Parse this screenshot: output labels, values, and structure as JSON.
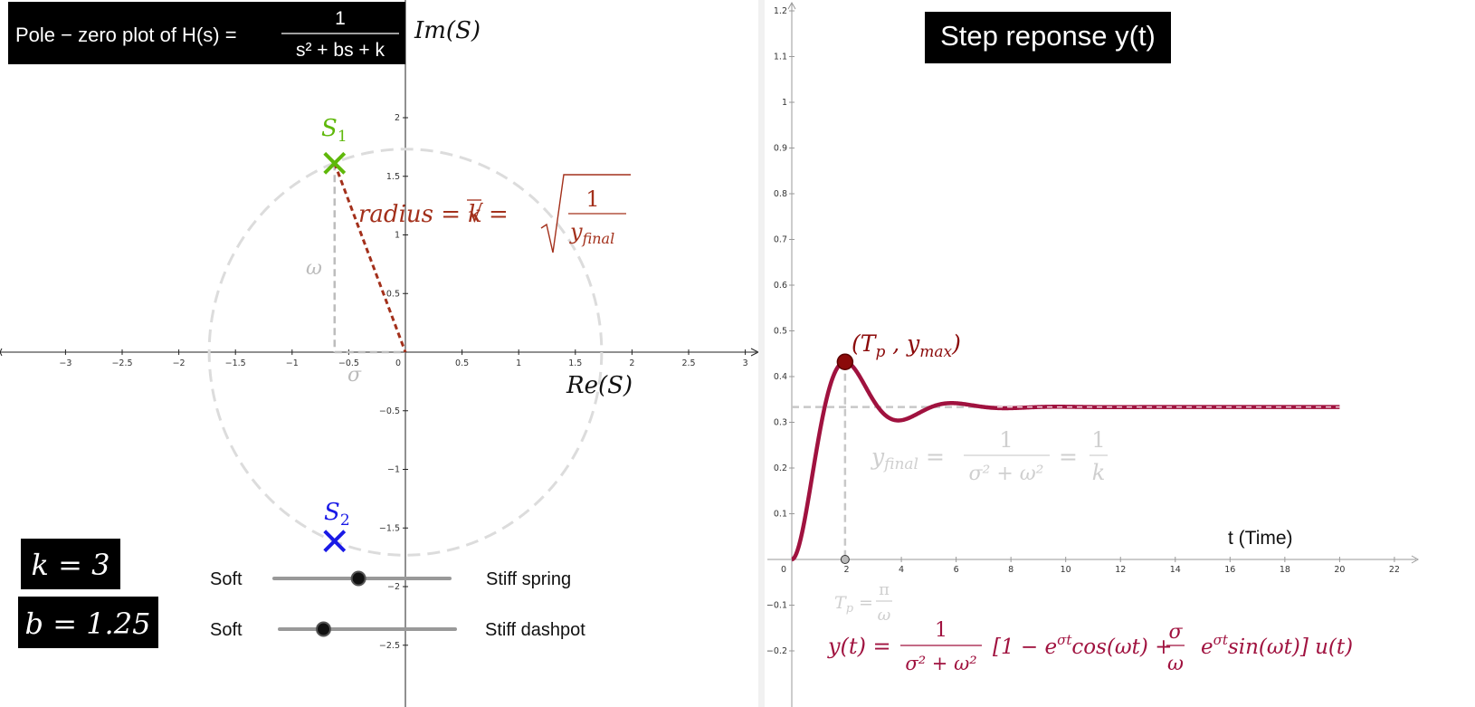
{
  "pole_zero_title": {
    "prefix": "Pole − zero plot of H(s) =",
    "numerator": "1",
    "denominator": "s² + bs + k",
    "bg": "#000000",
    "fg": "#ffffff"
  },
  "left_axes": {
    "x_label": "Re(S)",
    "y_label": "Im(S)",
    "x_ticks": [
      -3,
      -2.5,
      -2,
      -1.5,
      -1,
      -0.5,
      0,
      0.5,
      1,
      1.5,
      2,
      2.5,
      3
    ],
    "x_tick_labels": [
      "−3",
      "−2.5",
      "−2",
      "−1.5",
      "−1",
      "−0.5",
      "0",
      "0.5",
      "1",
      "1.5",
      "2",
      "2.5",
      "3"
    ],
    "y_ticks": [
      2,
      1.5,
      1,
      0.5,
      -0.5,
      -1,
      -1.5,
      -2,
      -2.5
    ],
    "y_tick_labels": [
      "2",
      "1.5",
      "1",
      "0.5",
      "−0.5",
      "−1",
      "−1.5",
      "−2",
      "−2.5"
    ]
  },
  "poles": {
    "s1_label": "S",
    "s1_sub": "1",
    "s2_label": "S",
    "s2_sub": "2",
    "s1_color": "#5fb80a",
    "s2_color": "#1a1ae6",
    "sigma": -0.625,
    "omega": 1.6116
  },
  "annotations": {
    "omega_label": "ω",
    "sigma_label": "σ",
    "radius_formula": "radius = √k = √(1 / y_final)",
    "radius_color": "#a3301b"
  },
  "params": {
    "k_display": "k = 3",
    "b_display": "b = 1.25",
    "k": 3,
    "b": 1.25
  },
  "sliders": {
    "spring_left": "Soft",
    "spring_right": "Stiff spring",
    "spring_value": 0.48,
    "dashpot_left": "Soft",
    "dashpot_right": "Stiff dashpot",
    "dashpot_value": 0.25
  },
  "step_title": "Step reponse y(t)",
  "right_axes": {
    "x_label": "t  (Time)",
    "x_ticks": [
      0,
      2,
      4,
      6,
      8,
      10,
      12,
      14,
      16,
      18,
      20,
      22
    ],
    "x_tick_labels": [
      "0",
      "2",
      "4",
      "6",
      "8",
      "10",
      "12",
      "14",
      "16",
      "18",
      "20",
      "22"
    ],
    "y_ticks": [
      1.2,
      1.1,
      1,
      0.9,
      0.8,
      0.7,
      0.6,
      0.5,
      0.4,
      0.3,
      0.2,
      0.1,
      -0.1,
      -0.2
    ],
    "y_tick_labels": [
      "1.2",
      "1.1",
      "1",
      "0.9",
      "0.8",
      "0.7",
      "0.6",
      "0.5",
      "0.4",
      "0.3",
      "0.2",
      "0.1",
      "−0.1",
      "−0.2"
    ]
  },
  "step_annotations": {
    "peak_label": "(T_p ,  y_max)",
    "yfinal_formula": "y_final = 1/(σ² + ω²) = 1/k",
    "tp_formula": "T_p = π/ω",
    "response_formula": "y(t) = 1/(σ² + ω²) [1 − e^{σt}cos(ωt) + σ/ω e^{σt}sin(ωt)] u(t)",
    "curve_color": "#a0123f",
    "peak_color": "#8b0a0a"
  },
  "chart_data": {
    "type": "line",
    "x_range": [
      0,
      20
    ],
    "ylim": [
      -0.25,
      1.22
    ],
    "xlim": [
      -0.5,
      23
    ],
    "final_value": 0.3333,
    "peak": {
      "t": 1.949,
      "y": 0.434
    }
  }
}
